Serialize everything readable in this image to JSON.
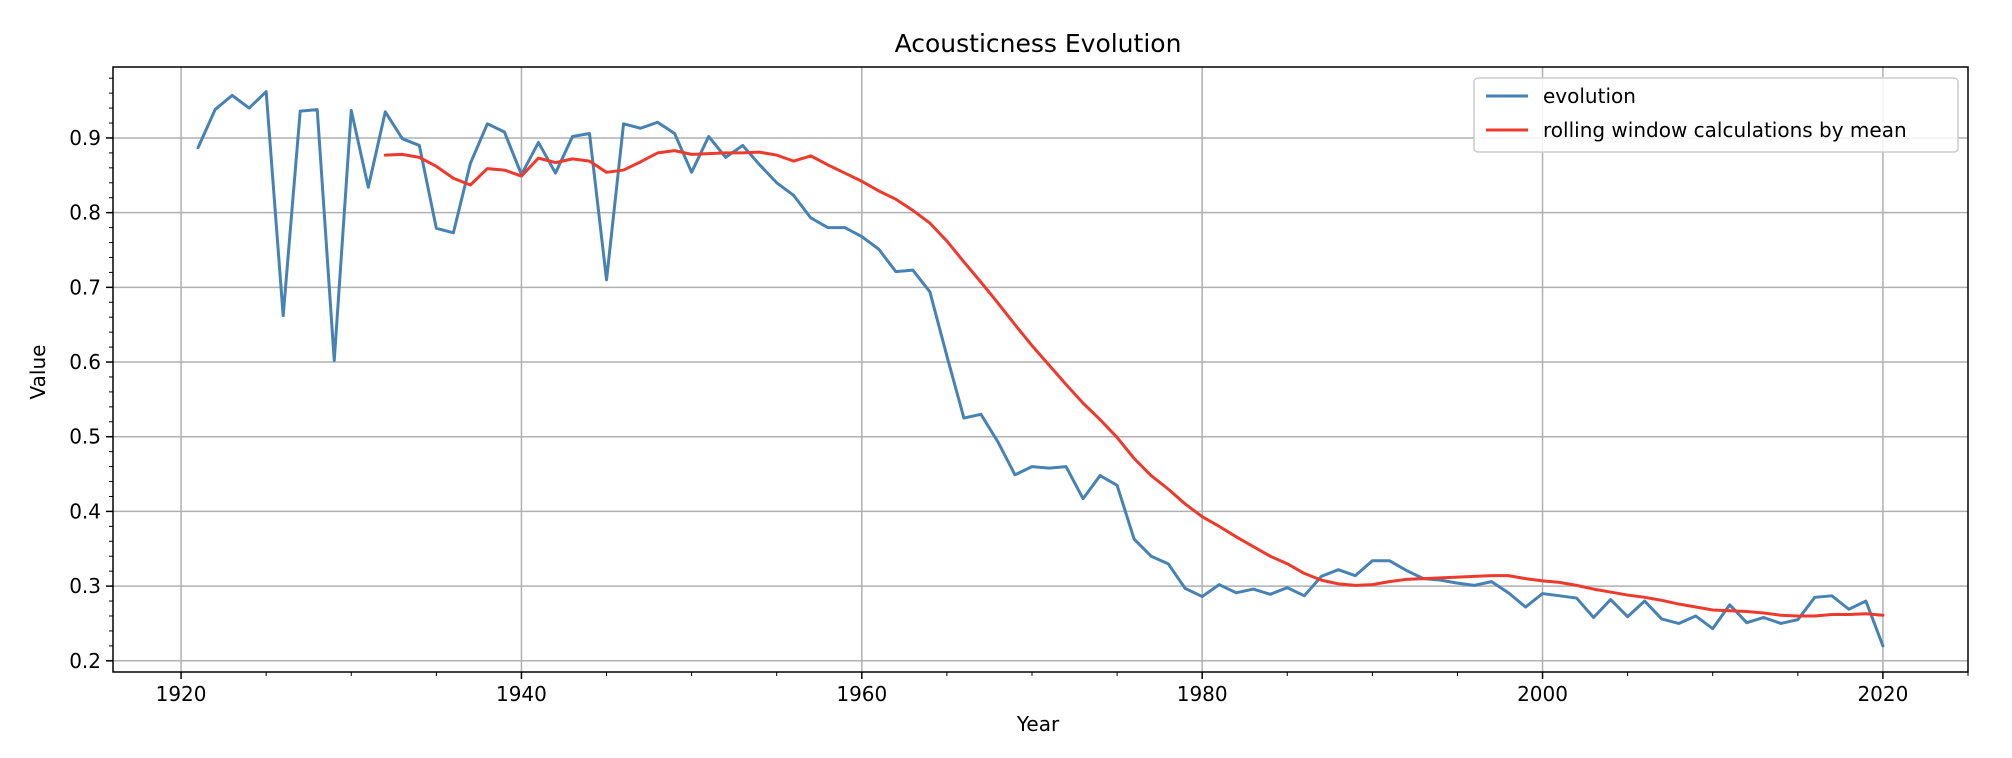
{
  "chart_data": {
    "type": "line",
    "title": "Acousticness Evolution",
    "xlabel": "Year",
    "ylabel": "Value",
    "xlim": [
      1916,
      2025
    ],
    "ylim": [
      0.185,
      0.995
    ],
    "xticks": [
      1920,
      1940,
      1960,
      1980,
      2000,
      2020
    ],
    "yticks": [
      0.2,
      0.3,
      0.4,
      0.5,
      0.6,
      0.7,
      0.8,
      0.9
    ],
    "grid": true,
    "legend_position": "top-right",
    "series": [
      {
        "name": "evolution",
        "color": "#4682b4",
        "x": [
          1921,
          1922,
          1923,
          1924,
          1925,
          1926,
          1927,
          1928,
          1929,
          1930,
          1931,
          1932,
          1933,
          1934,
          1935,
          1936,
          1937,
          1938,
          1939,
          1940,
          1941,
          1942,
          1943,
          1944,
          1945,
          1946,
          1947,
          1948,
          1949,
          1950,
          1951,
          1952,
          1953,
          1954,
          1955,
          1956,
          1957,
          1958,
          1959,
          1960,
          1961,
          1962,
          1963,
          1964,
          1965,
          1966,
          1967,
          1968,
          1969,
          1970,
          1971,
          1972,
          1973,
          1974,
          1975,
          1976,
          1977,
          1978,
          1979,
          1980,
          1981,
          1982,
          1983,
          1984,
          1985,
          1986,
          1987,
          1988,
          1989,
          1990,
          1991,
          1992,
          1993,
          1994,
          1995,
          1996,
          1997,
          1998,
          1999,
          2000,
          2001,
          2002,
          2003,
          2004,
          2005,
          2006,
          2007,
          2008,
          2009,
          2010,
          2011,
          2012,
          2013,
          2014,
          2015,
          2016,
          2017,
          2018,
          2019,
          2020
        ],
        "y": [
          0.887,
          0.938,
          0.957,
          0.94,
          0.962,
          0.662,
          0.936,
          0.938,
          0.602,
          0.937,
          0.834,
          0.935,
          0.899,
          0.89,
          0.779,
          0.773,
          0.866,
          0.919,
          0.908,
          0.851,
          0.894,
          0.853,
          0.902,
          0.906,
          0.71,
          0.919,
          0.913,
          0.921,
          0.906,
          0.854,
          0.902,
          0.874,
          0.89,
          0.864,
          0.84,
          0.823,
          0.793,
          0.78,
          0.78,
          0.768,
          0.751,
          0.721,
          0.723,
          0.694,
          0.608,
          0.525,
          0.53,
          0.493,
          0.449,
          0.46,
          0.458,
          0.46,
          0.417,
          0.448,
          0.435,
          0.363,
          0.34,
          0.33,
          0.297,
          0.286,
          0.302,
          0.291,
          0.296,
          0.289,
          0.298,
          0.287,
          0.313,
          0.322,
          0.314,
          0.334,
          0.334,
          0.321,
          0.31,
          0.308,
          0.304,
          0.301,
          0.306,
          0.291,
          0.272,
          0.29,
          0.287,
          0.284,
          0.258,
          0.282,
          0.259,
          0.28,
          0.256,
          0.25,
          0.26,
          0.243,
          0.275,
          0.251,
          0.258,
          0.25,
          0.255,
          0.285,
          0.287,
          0.269,
          0.28,
          0.22
        ]
      },
      {
        "name": "rolling window calculations by mean",
        "color": "#ee3a2d",
        "x": [
          1932,
          1933,
          1934,
          1935,
          1936,
          1937,
          1938,
          1939,
          1940,
          1941,
          1942,
          1943,
          1944,
          1945,
          1946,
          1947,
          1948,
          1949,
          1950,
          1951,
          1952,
          1953,
          1954,
          1955,
          1956,
          1957,
          1958,
          1959,
          1960,
          1961,
          1962,
          1963,
          1964,
          1965,
          1966,
          1967,
          1968,
          1969,
          1970,
          1971,
          1972,
          1973,
          1974,
          1975,
          1976,
          1977,
          1978,
          1979,
          1980,
          1981,
          1982,
          1983,
          1984,
          1985,
          1986,
          1987,
          1988,
          1989,
          1990,
          1991,
          1992,
          1993,
          1994,
          1995,
          1996,
          1997,
          1998,
          1999,
          2000,
          2001,
          2002,
          2003,
          2004,
          2005,
          2006,
          2007,
          2008,
          2009,
          2010,
          2011,
          2012,
          2013,
          2014,
          2015,
          2016,
          2017,
          2018,
          2019,
          2020
        ],
        "y": [
          0.877,
          0.878,
          0.874,
          0.862,
          0.846,
          0.837,
          0.859,
          0.857,
          0.849,
          0.873,
          0.867,
          0.872,
          0.869,
          0.854,
          0.857,
          0.868,
          0.88,
          0.883,
          0.878,
          0.879,
          0.88,
          0.88,
          0.881,
          0.877,
          0.869,
          0.876,
          0.864,
          0.853,
          0.842,
          0.829,
          0.818,
          0.803,
          0.786,
          0.762,
          0.734,
          0.707,
          0.679,
          0.65,
          0.622,
          0.596,
          0.57,
          0.545,
          0.523,
          0.499,
          0.471,
          0.448,
          0.43,
          0.41,
          0.393,
          0.38,
          0.366,
          0.353,
          0.34,
          0.33,
          0.317,
          0.308,
          0.303,
          0.301,
          0.302,
          0.306,
          0.309,
          0.31,
          0.311,
          0.312,
          0.313,
          0.314,
          0.314,
          0.31,
          0.307,
          0.305,
          0.301,
          0.296,
          0.292,
          0.288,
          0.285,
          0.281,
          0.276,
          0.272,
          0.268,
          0.267,
          0.266,
          0.264,
          0.261,
          0.26,
          0.26,
          0.262,
          0.262,
          0.263,
          0.261
        ]
      }
    ]
  }
}
